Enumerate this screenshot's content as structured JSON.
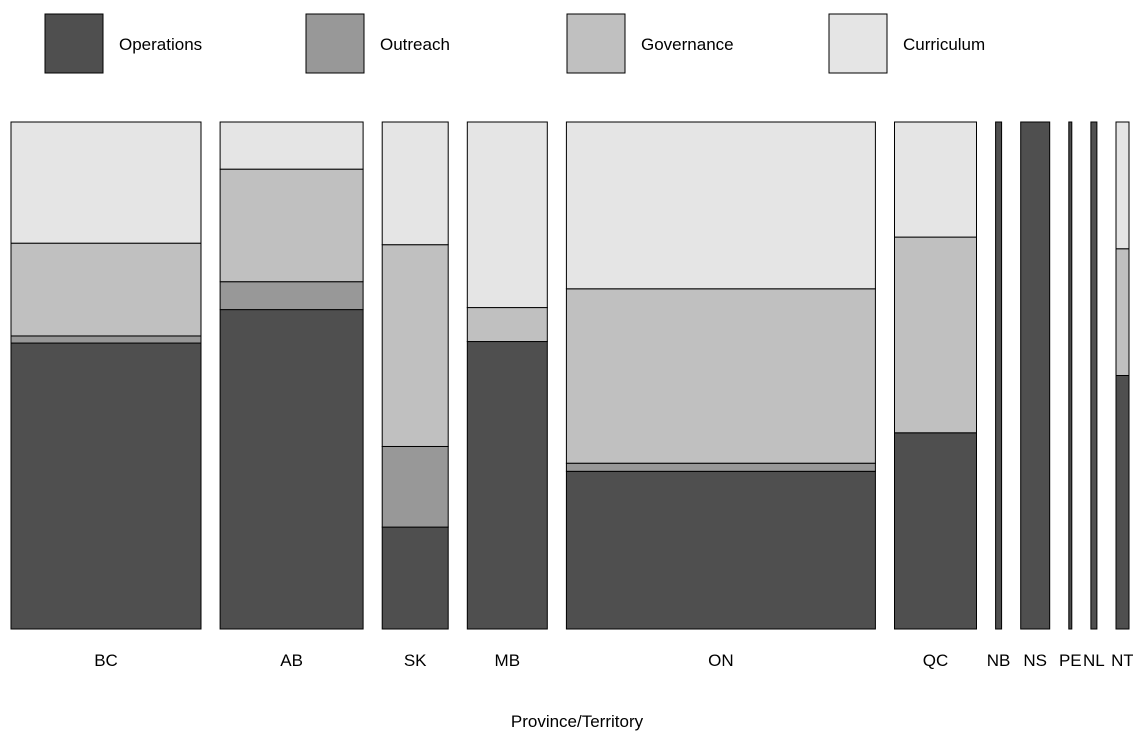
{
  "chart_data": {
    "type": "mosaic",
    "xlabel": "Province/Territory",
    "categories": [
      "BC",
      "AB",
      "SK",
      "MB",
      "ON",
      "QC",
      "NB",
      "NS",
      "PE",
      "NL",
      "NT"
    ],
    "widths": [
      190,
      143,
      66,
      80,
      309,
      82,
      6,
      29,
      3,
      6,
      13
    ],
    "series": [
      {
        "name": "Operations",
        "color": "#4f4f4f",
        "values": [
          0.564,
          0.63,
          0.201,
          0.567,
          0.311,
          0.387,
          1.0,
          1.0,
          1.0,
          1.0,
          0.5
        ]
      },
      {
        "name": "Outreach",
        "color": "#989898",
        "values": [
          0.014,
          0.055,
          0.159,
          0.0,
          0.016,
          0.0,
          0.0,
          0.0,
          0.0,
          0.0,
          0.0
        ]
      },
      {
        "name": "Governance",
        "color": "#c0c0c0",
        "values": [
          0.183,
          0.222,
          0.398,
          0.067,
          0.344,
          0.386,
          0.0,
          0.0,
          0.0,
          0.0,
          0.25
        ]
      },
      {
        "name": "Curriculum",
        "color": "#e5e5e5",
        "values": [
          0.239,
          0.093,
          0.242,
          0.366,
          0.329,
          0.227,
          0.0,
          0.0,
          0.0,
          0.0,
          0.25
        ]
      }
    ],
    "legend_position": "top",
    "grid": false
  }
}
